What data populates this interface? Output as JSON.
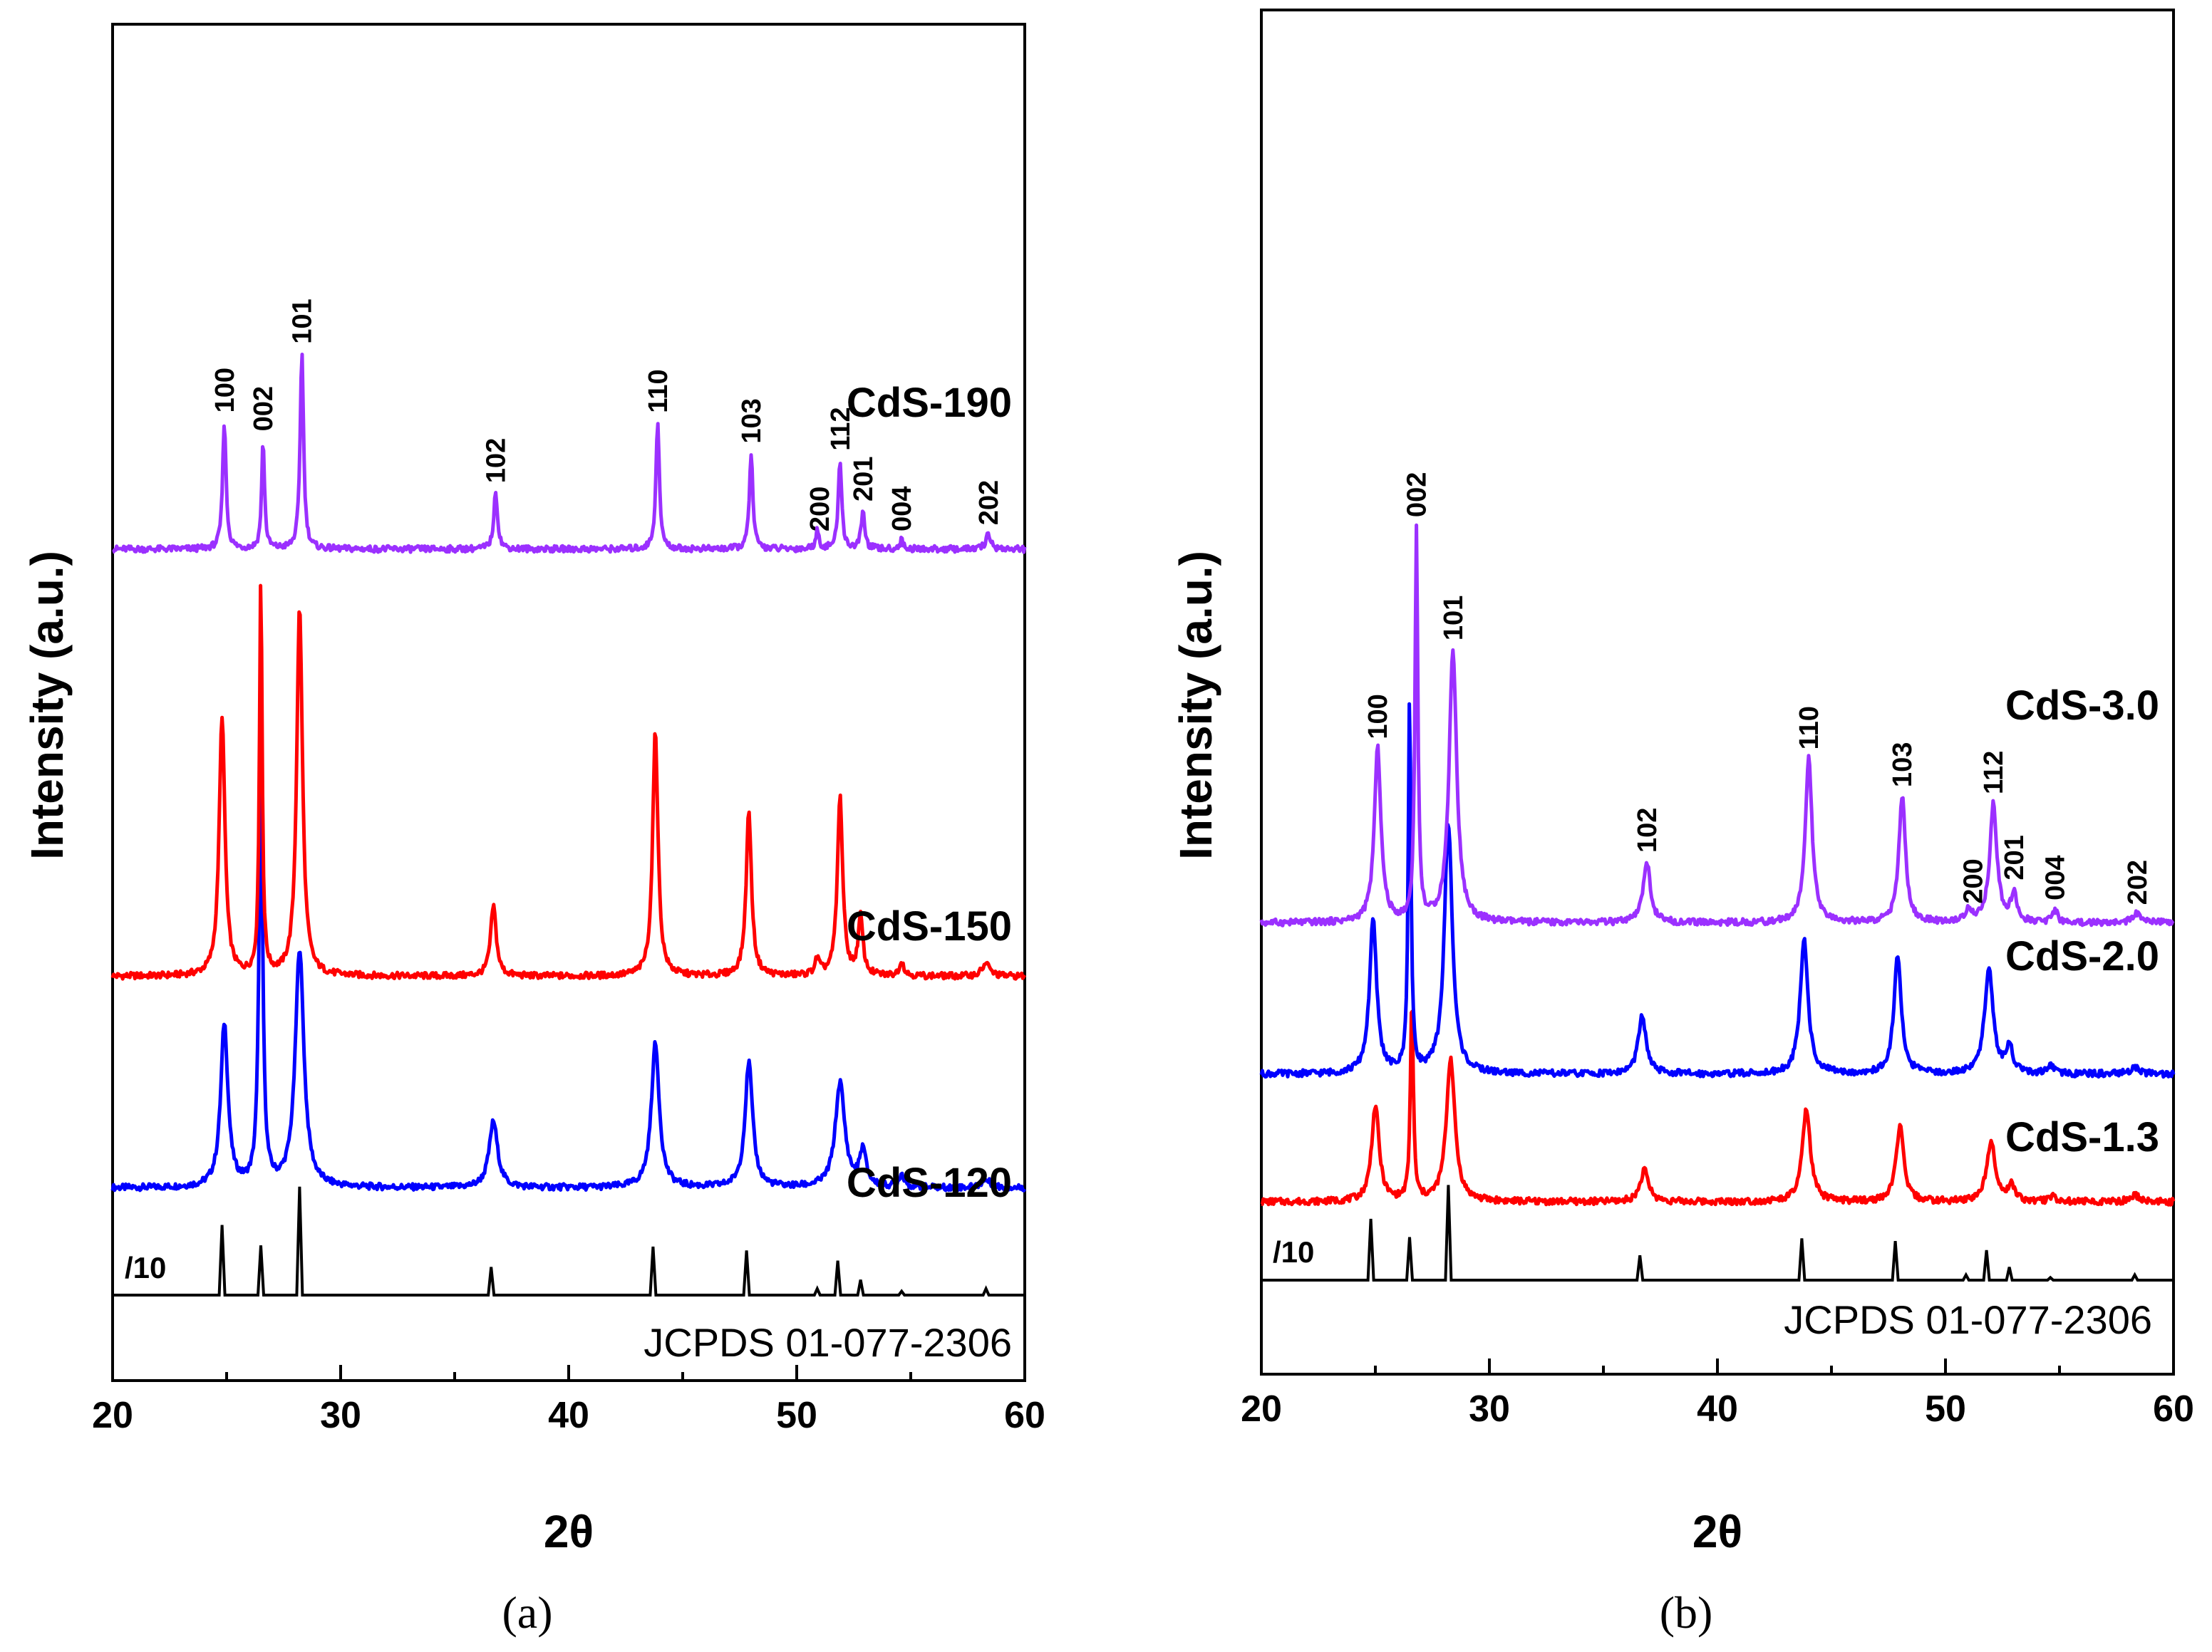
{
  "chart_data": [
    {
      "type": "line",
      "panel_caption": "(a)",
      "xlabel": "2θ",
      "ylabel": "Intensity (a.u.)",
      "xlim": [
        20,
        60
      ],
      "xticks": [
        20,
        30,
        40,
        50,
        60
      ],
      "y_tick_labels": false,
      "reference_label": "JCPDS 01-077-2306",
      "reference_scale": "/10",
      "reference_peaks": [
        {
          "x": 24.8,
          "h": 0.55
        },
        {
          "x": 26.5,
          "h": 0.39
        },
        {
          "x": 28.2,
          "h": 0.85
        },
        {
          "x": 36.6,
          "h": 0.22
        },
        {
          "x": 43.7,
          "h": 0.38
        },
        {
          "x": 47.8,
          "h": 0.35
        },
        {
          "x": 50.9,
          "h": 0.05
        },
        {
          "x": 51.8,
          "h": 0.27
        },
        {
          "x": 52.8,
          "h": 0.12
        },
        {
          "x": 54.6,
          "h": 0.03
        },
        {
          "x": 58.3,
          "h": 0.05
        }
      ],
      "series": [
        {
          "name": "CdS-120",
          "color": "#0000ff",
          "baseline": 0.84,
          "peaks": [
            {
              "x": 24.9,
              "h": 1.28,
              "w": 0.38
            },
            {
              "x": 26.5,
              "h": 3.2,
              "w": 0.2
            },
            {
              "x": 28.2,
              "h": 1.87,
              "w": 0.45
            },
            {
              "x": 36.7,
              "h": 0.52,
              "w": 0.45
            },
            {
              "x": 43.8,
              "h": 1.13,
              "w": 0.42
            },
            {
              "x": 47.9,
              "h": 0.98,
              "w": 0.4
            },
            {
              "x": 51.9,
              "h": 0.82,
              "w": 0.5
            },
            {
              "x": 52.9,
              "h": 0.28,
              "w": 0.35
            },
            {
              "x": 54.6,
              "h": 0.1,
              "w": 0.3
            },
            {
              "x": 58.3,
              "h": 0.06,
              "w": 0.5
            }
          ]
        },
        {
          "name": "CdS-150",
          "color": "#ff0000",
          "baseline": 2.5,
          "peaks": [
            {
              "x": 24.8,
              "h": 2.04,
              "w": 0.3
            },
            {
              "x": 26.5,
              "h": 3.1,
              "w": 0.14
            },
            {
              "x": 28.2,
              "h": 2.9,
              "w": 0.3
            },
            {
              "x": 36.7,
              "h": 0.55,
              "w": 0.3
            },
            {
              "x": 43.8,
              "h": 1.92,
              "w": 0.28
            },
            {
              "x": 47.9,
              "h": 1.29,
              "w": 0.28
            },
            {
              "x": 51.9,
              "h": 1.4,
              "w": 0.28
            },
            {
              "x": 52.8,
              "h": 0.45,
              "w": 0.25
            },
            {
              "x": 50.9,
              "h": 0.12,
              "w": 0.25
            },
            {
              "x": 54.6,
              "h": 0.11,
              "w": 0.25
            },
            {
              "x": 58.3,
              "h": 0.1,
              "w": 0.4
            }
          ]
        },
        {
          "name": "CdS-190",
          "color": "#9b30ff",
          "baseline": 5.85,
          "peaks": [
            {
              "x": 24.9,
              "h": 1.0,
              "w": 0.18
            },
            {
              "x": 26.6,
              "h": 0.85,
              "w": 0.15
            },
            {
              "x": 28.3,
              "h": 1.54,
              "w": 0.18
            },
            {
              "x": 36.8,
              "h": 0.45,
              "w": 0.2
            },
            {
              "x": 43.9,
              "h": 1.0,
              "w": 0.18
            },
            {
              "x": 48.0,
              "h": 0.76,
              "w": 0.18
            },
            {
              "x": 50.9,
              "h": 0.14,
              "w": 0.18
            },
            {
              "x": 51.9,
              "h": 0.7,
              "w": 0.18
            },
            {
              "x": 52.9,
              "h": 0.3,
              "w": 0.18
            },
            {
              "x": 54.6,
              "h": 0.07,
              "w": 0.18
            },
            {
              "x": 58.4,
              "h": 0.12,
              "w": 0.25
            }
          ]
        }
      ],
      "hkl_labels": [
        {
          "label": "100",
          "x": 24.9
        },
        {
          "label": "002",
          "x": 26.6
        },
        {
          "label": "101",
          "x": 28.3
        },
        {
          "label": "102",
          "x": 36.8
        },
        {
          "label": "110",
          "x": 43.9
        },
        {
          "label": "103",
          "x": 48.0
        },
        {
          "label": "200",
          "x": 51.0
        },
        {
          "label": "112",
          "x": 51.9
        },
        {
          "label": "201",
          "x": 52.9
        },
        {
          "label": "004",
          "x": 54.6
        },
        {
          "label": "202",
          "x": 58.4
        }
      ]
    },
    {
      "type": "line",
      "panel_caption": "(b)",
      "xlabel": "2θ",
      "ylabel": "Intensity (a.u.)",
      "xlim": [
        20,
        60
      ],
      "xticks": [
        20,
        30,
        40,
        50,
        60
      ],
      "y_tick_labels": false,
      "reference_label": "JCPDS 01-077-2306",
      "reference_scale": "/10",
      "reference_peaks": [
        {
          "x": 24.8,
          "h": 0.47
        },
        {
          "x": 26.5,
          "h": 0.33
        },
        {
          "x": 28.2,
          "h": 0.73
        },
        {
          "x": 36.6,
          "h": 0.19
        },
        {
          "x": 43.7,
          "h": 0.32
        },
        {
          "x": 47.8,
          "h": 0.3
        },
        {
          "x": 50.9,
          "h": 0.04
        },
        {
          "x": 51.8,
          "h": 0.23
        },
        {
          "x": 52.8,
          "h": 0.1
        },
        {
          "x": 54.6,
          "h": 0.02
        },
        {
          "x": 58.3,
          "h": 0.04
        }
      ],
      "series": [
        {
          "name": "CdS-1.3",
          "color": "#ff0000",
          "baseline": 0.6,
          "peaks": [
            {
              "x": 25.0,
              "h": 0.73,
              "w": 0.4
            },
            {
              "x": 26.6,
              "h": 1.56,
              "w": 0.15
            },
            {
              "x": 28.3,
              "h": 1.1,
              "w": 0.45
            },
            {
              "x": 36.8,
              "h": 0.24,
              "w": 0.45
            },
            {
              "x": 43.9,
              "h": 0.71,
              "w": 0.42
            },
            {
              "x": 48.0,
              "h": 0.58,
              "w": 0.4
            },
            {
              "x": 52.0,
              "h": 0.47,
              "w": 0.45
            },
            {
              "x": 52.9,
              "h": 0.12,
              "w": 0.35
            },
            {
              "x": 54.7,
              "h": 0.05,
              "w": 0.3
            },
            {
              "x": 58.3,
              "h": 0.05,
              "w": 0.5
            }
          ]
        },
        {
          "name": "CdS-2.0",
          "color": "#0000ff",
          "baseline": 1.58,
          "peaks": [
            {
              "x": 24.9,
              "h": 1.17,
              "w": 0.38
            },
            {
              "x": 26.5,
              "h": 2.88,
              "w": 0.14
            },
            {
              "x": 28.2,
              "h": 1.92,
              "w": 0.42
            },
            {
              "x": 36.7,
              "h": 0.44,
              "w": 0.42
            },
            {
              "x": 43.8,
              "h": 1.05,
              "w": 0.4
            },
            {
              "x": 47.9,
              "h": 0.91,
              "w": 0.38
            },
            {
              "x": 51.9,
              "h": 0.8,
              "w": 0.45
            },
            {
              "x": 52.8,
              "h": 0.2,
              "w": 0.35
            },
            {
              "x": 54.6,
              "h": 0.06,
              "w": 0.3
            },
            {
              "x": 58.3,
              "h": 0.05,
              "w": 0.5
            }
          ]
        },
        {
          "name": "CdS-3.0",
          "color": "#9b30ff",
          "baseline": 2.74,
          "peaks": [
            {
              "x": 25.1,
              "h": 1.33,
              "w": 0.35
            },
            {
              "x": 26.8,
              "h": 3.0,
              "w": 0.15
            },
            {
              "x": 28.4,
              "h": 2.09,
              "w": 0.4
            },
            {
              "x": 36.9,
              "h": 0.47,
              "w": 0.38
            },
            {
              "x": 44.0,
              "h": 1.26,
              "w": 0.36
            },
            {
              "x": 48.1,
              "h": 0.97,
              "w": 0.35
            },
            {
              "x": 52.1,
              "h": 0.91,
              "w": 0.38
            },
            {
              "x": 53.0,
              "h": 0.22,
              "w": 0.3
            },
            {
              "x": 51.0,
              "h": 0.1,
              "w": 0.3
            },
            {
              "x": 54.8,
              "h": 0.1,
              "w": 0.25
            },
            {
              "x": 58.4,
              "h": 0.07,
              "w": 0.5
            }
          ]
        }
      ],
      "hkl_labels": [
        {
          "label": "100",
          "x": 25.1
        },
        {
          "label": "002",
          "x": 26.8
        },
        {
          "label": "101",
          "x": 28.4
        },
        {
          "label": "102",
          "x": 36.9
        },
        {
          "label": "110",
          "x": 44.0
        },
        {
          "label": "103",
          "x": 48.1
        },
        {
          "label": "200",
          "x": 51.2
        },
        {
          "label": "112",
          "x": 52.1
        },
        {
          "label": "201",
          "x": 53.0
        },
        {
          "label": "004",
          "x": 54.8
        },
        {
          "label": "202",
          "x": 58.4
        }
      ]
    }
  ]
}
